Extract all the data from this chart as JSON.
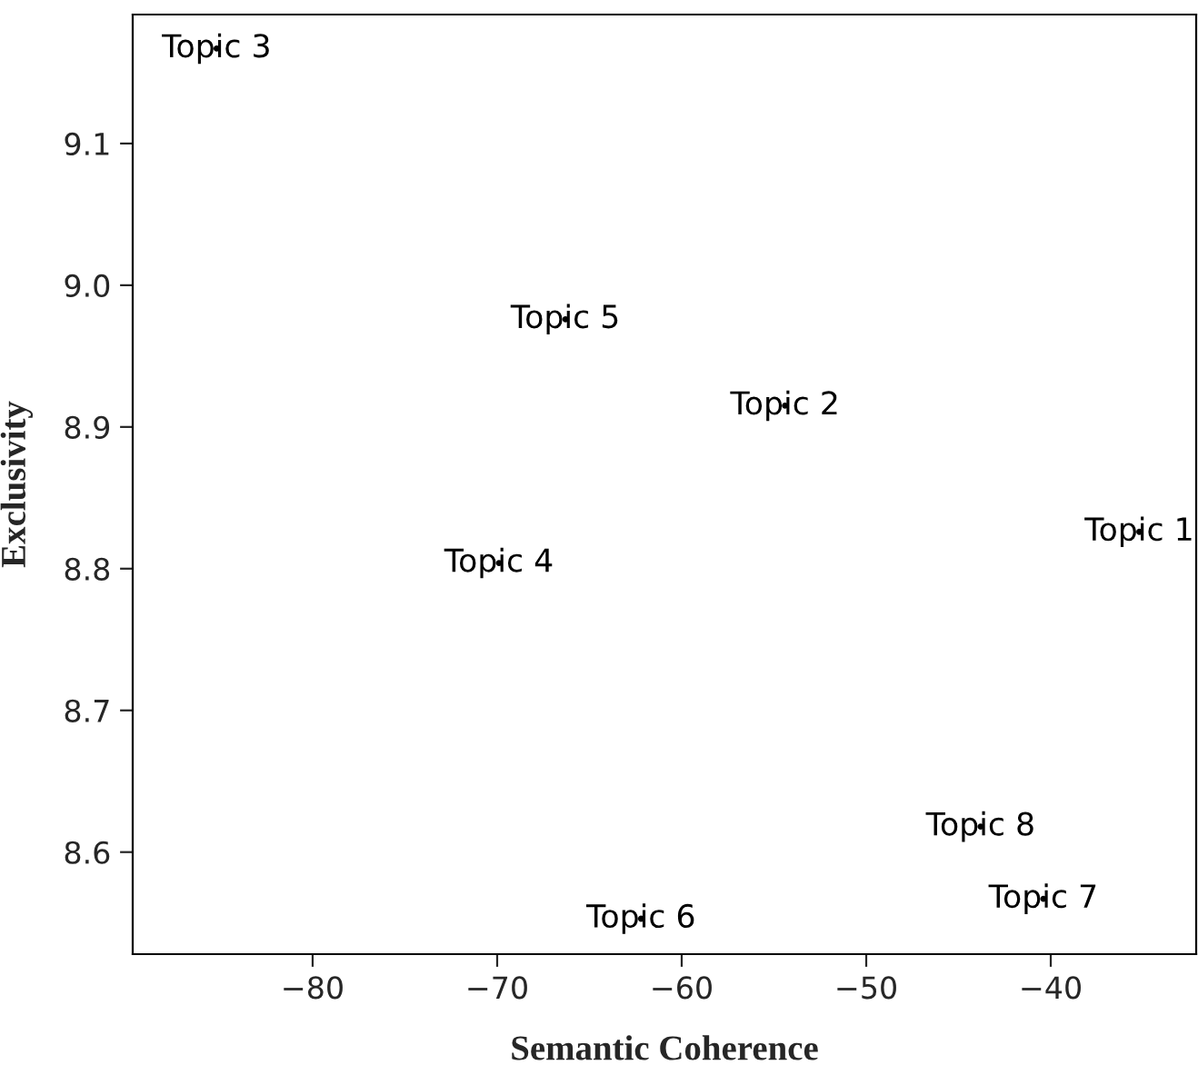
{
  "chart_data": {
    "type": "scatter",
    "xlabel": "Semantic Coherence",
    "ylabel": "Exclusivity",
    "marker": "circle",
    "grid": false,
    "legend": false,
    "series": [
      {
        "name": "Topic 1",
        "color": "#000000",
        "x": [
          -35.2
        ],
        "values": [
          8.826
        ]
      },
      {
        "name": "Topic 2",
        "color": "#000000",
        "x": [
          -54.4
        ],
        "values": [
          8.915
        ]
      },
      {
        "name": "Topic 3",
        "color": "#000000",
        "x": [
          -85.2
        ],
        "values": [
          9.167
        ]
      },
      {
        "name": "Topic 4",
        "color": "#000000",
        "x": [
          -69.9
        ],
        "values": [
          8.804
        ]
      },
      {
        "name": "Topic 5",
        "color": "#000000",
        "x": [
          -66.3
        ],
        "values": [
          8.976
        ]
      },
      {
        "name": "Topic 6",
        "color": "#000000",
        "x": [
          -62.2
        ],
        "values": [
          8.553
        ]
      },
      {
        "name": "Topic 7",
        "color": "#000000",
        "x": [
          -40.4
        ],
        "values": [
          8.567
        ]
      },
      {
        "name": "Topic 8",
        "color": "#000000",
        "x": [
          -43.8
        ],
        "values": [
          8.618
        ]
      }
    ],
    "xlim": [
      -89.75,
      -32.12
    ],
    "ylim": [
      8.528,
      9.191
    ],
    "xticks": [
      {
        "value": -80,
        "label": "−80"
      },
      {
        "value": -70,
        "label": "−70"
      },
      {
        "value": -60,
        "label": "−60"
      },
      {
        "value": -50,
        "label": "−50"
      },
      {
        "value": -40,
        "label": "−40"
      }
    ],
    "yticks": [
      8.6,
      8.7,
      8.8,
      8.9,
      {
        "value": 9.0,
        "label": "9.0"
      },
      9.1
    ]
  }
}
